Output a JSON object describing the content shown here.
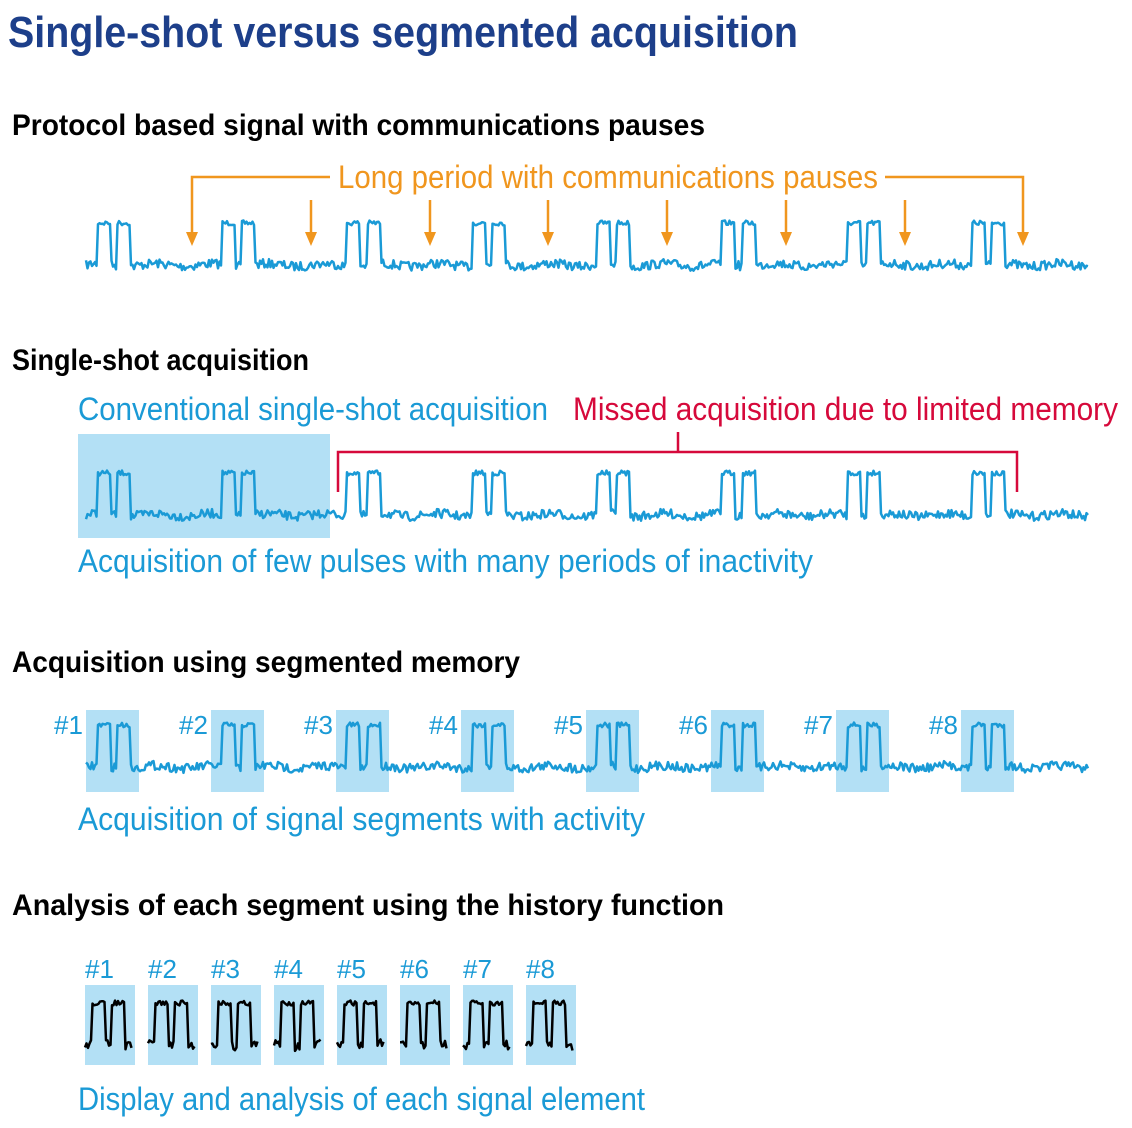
{
  "title": "Single-shot versus segmented acquisition",
  "sections": [
    {
      "heading": "Protocol based signal with communications pauses",
      "annotation": "Long period with communications pauses"
    },
    {
      "heading": "Single-shot acquisition",
      "label": "Conventional single-shot acquisition",
      "annotation": "Missed acquisition due to limited memory",
      "caption": "Acquisition of few pulses with many periods of inactivity"
    },
    {
      "heading": "Acquisition using segmented memory",
      "segments": [
        "#1",
        "#2",
        "#3",
        "#4",
        "#5",
        "#6",
        "#7",
        "#8"
      ],
      "caption": "Acquisition of signal segments with activity"
    },
    {
      "heading": "Analysis of each segment using the history function",
      "segments": [
        "#1",
        "#2",
        "#3",
        "#4",
        "#5",
        "#6",
        "#7",
        "#8"
      ],
      "caption": "Display and analysis of each signal element"
    }
  ]
}
